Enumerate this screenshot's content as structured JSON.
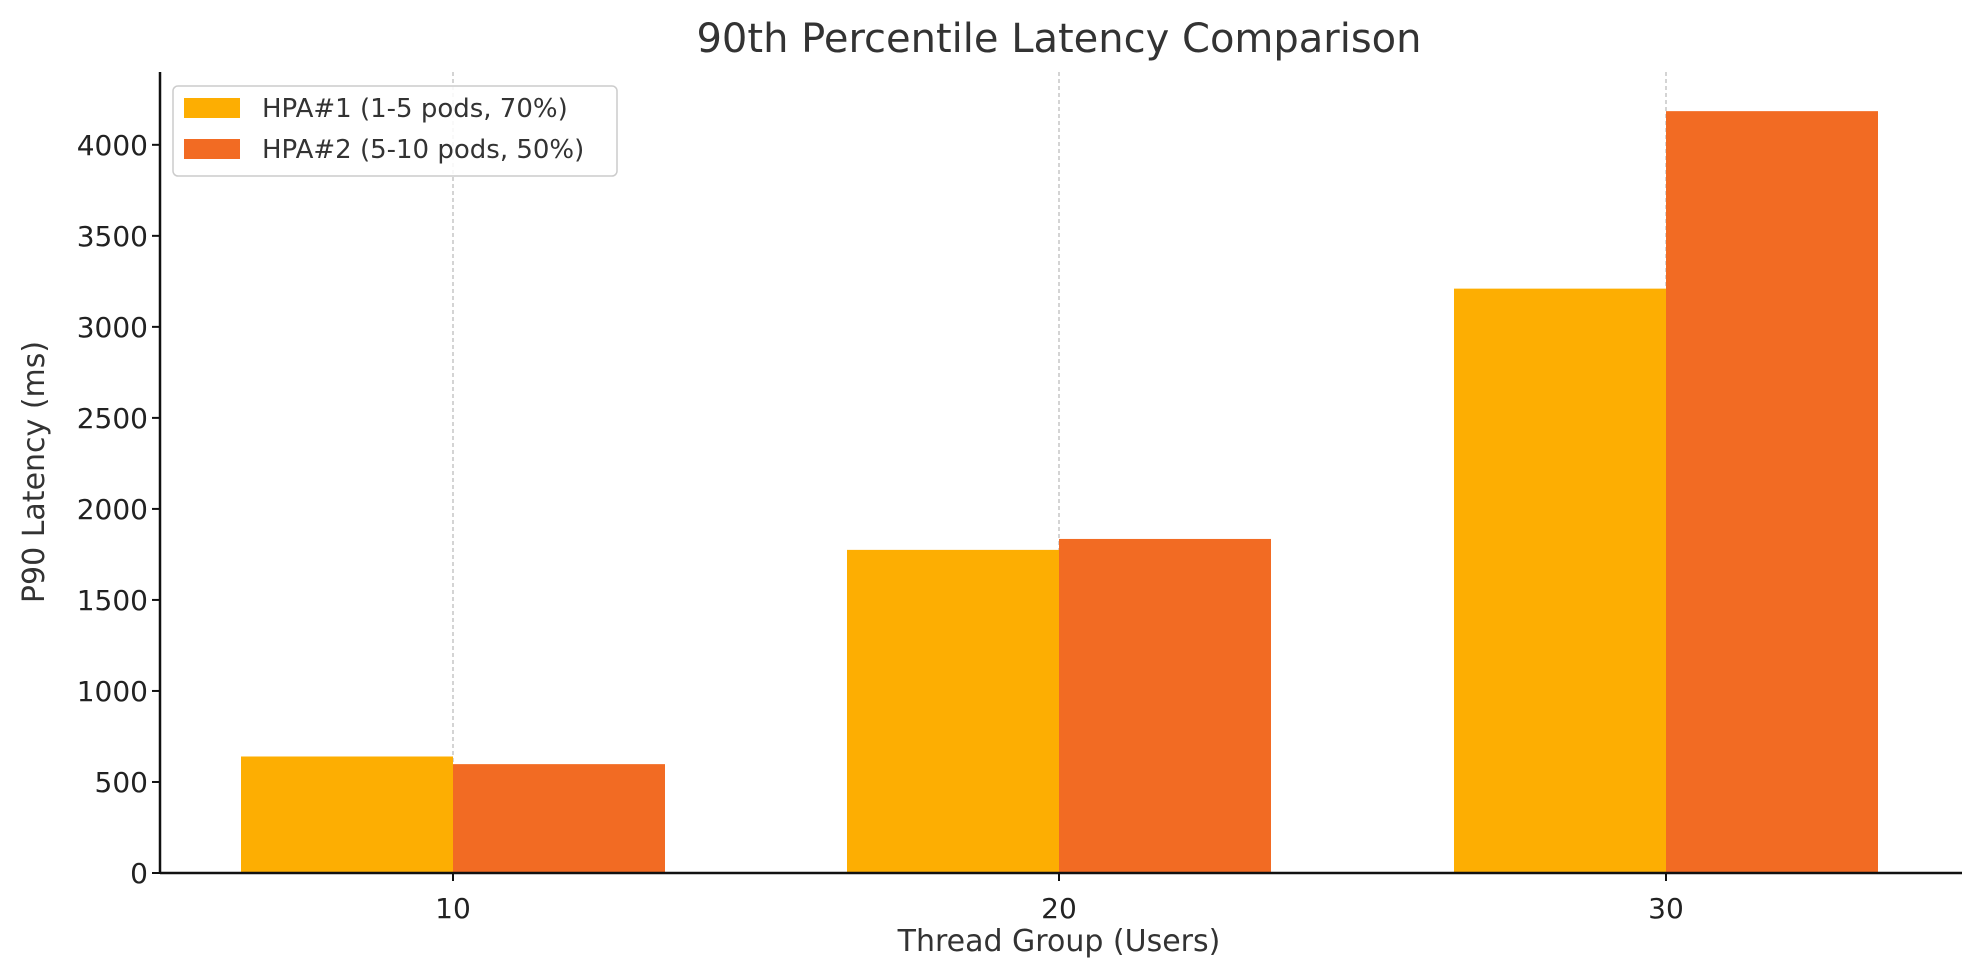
{
  "chart_data": {
    "type": "bar",
    "title": "90th Percentile Latency Comparison",
    "xlabel": "Thread Group (Users)",
    "ylabel": "P90 Latency (ms)",
    "categories": [
      "10",
      "20",
      "30"
    ],
    "series": [
      {
        "name": "HPA#1 (1-5 pods, 70%)",
        "color": "#FDAE02",
        "values": [
          640,
          1775,
          3210
        ]
      },
      {
        "name": "HPA#2 (5-10 pods, 50%)",
        "color": "#F26B23",
        "values": [
          598,
          1835,
          4185
        ]
      }
    ],
    "ylim": [
      0,
      4400
    ],
    "yticks": [
      "0",
      "500",
      "1000",
      "1500",
      "2000",
      "2500",
      "3000",
      "3500",
      "4000"
    ],
    "grid": "vertical dashed at category centers",
    "legend": "top-left"
  }
}
